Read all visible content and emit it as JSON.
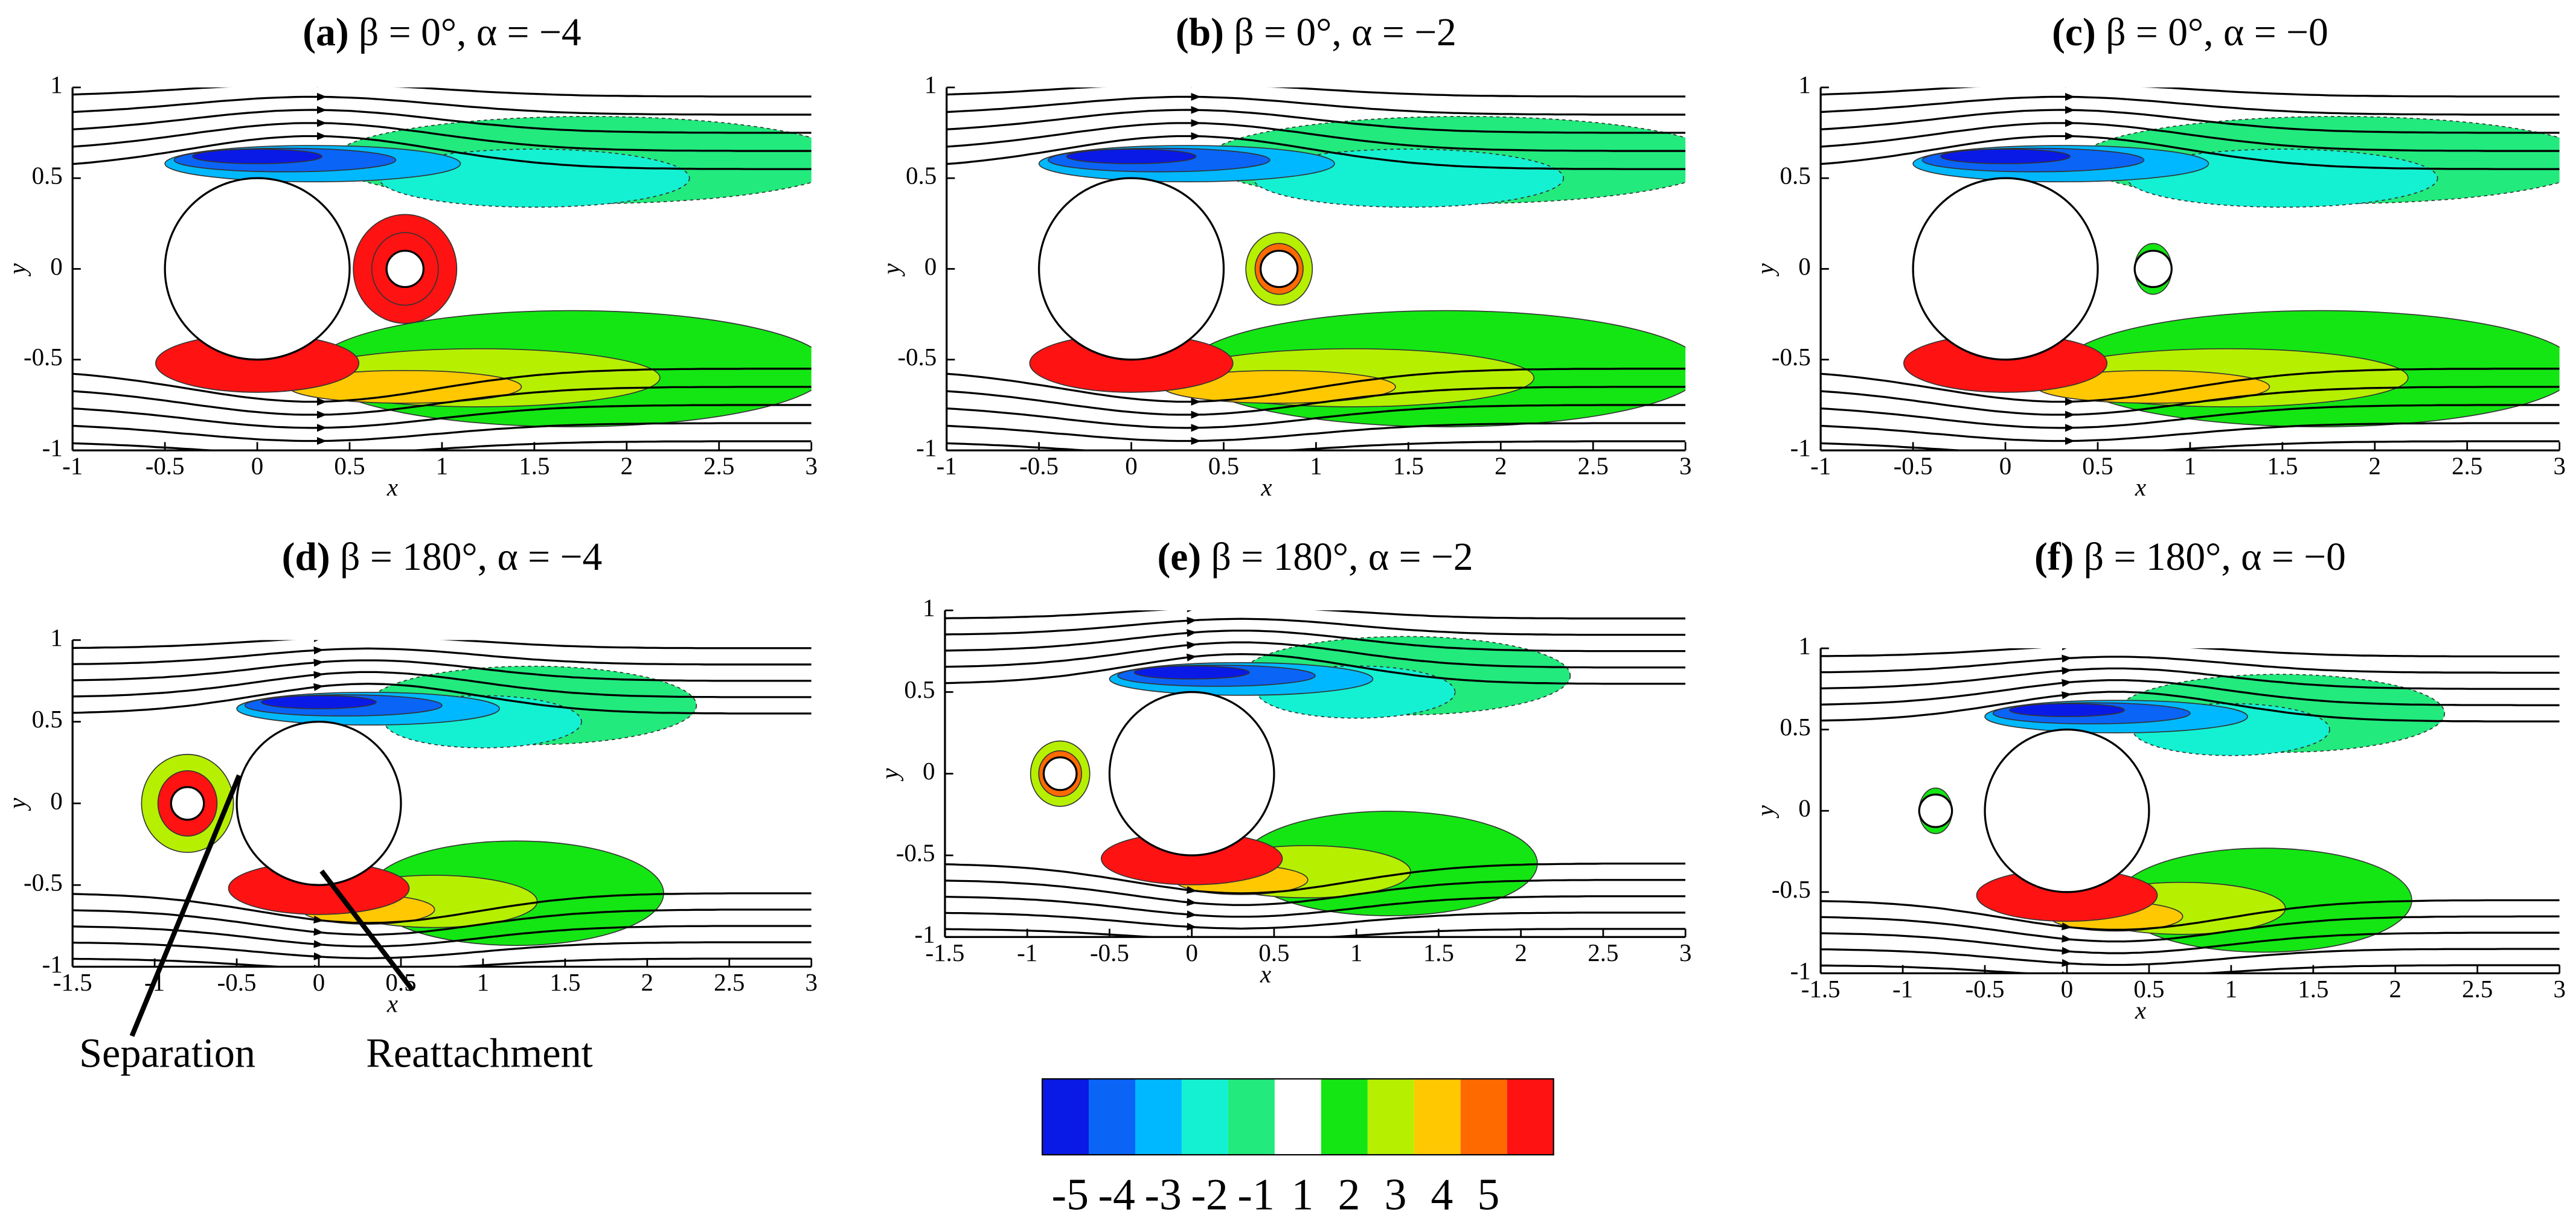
{
  "chart_data": [
    {
      "type": "contour",
      "label": "(a)",
      "title": "β = 0°, α = −4",
      "xlabel": "x",
      "ylabel": "y",
      "xlim": [
        -1,
        3
      ],
      "ylim": [
        -1,
        1
      ],
      "xticks": [
        -1,
        -0.5,
        0,
        0.5,
        1,
        1.5,
        2,
        2.5,
        3
      ],
      "yticks": [
        -1,
        -0.5,
        0,
        0.5,
        1
      ],
      "bodies": [
        {
          "x": 0,
          "y": 0,
          "r": 0.5
        },
        {
          "x": 0.8,
          "y": 0,
          "r": 0.1
        }
      ]
    },
    {
      "type": "contour",
      "label": "(b)",
      "title": "β = 0°, α = −2",
      "xlabel": "x",
      "ylabel": "y",
      "xlim": [
        -1,
        3
      ],
      "ylim": [
        -1,
        1
      ],
      "xticks": [
        -1,
        -0.5,
        0,
        0.5,
        1,
        1.5,
        2,
        2.5,
        3
      ],
      "yticks": [
        -1,
        -0.5,
        0,
        0.5,
        1
      ],
      "bodies": [
        {
          "x": 0,
          "y": 0,
          "r": 0.5
        },
        {
          "x": 0.8,
          "y": 0,
          "r": 0.1
        }
      ]
    },
    {
      "type": "contour",
      "label": "(c)",
      "title": "β = 0°, α = −0",
      "xlabel": "x",
      "ylabel": "y",
      "xlim": [
        -1,
        3
      ],
      "ylim": [
        -1,
        1
      ],
      "xticks": [
        -1,
        -0.5,
        0,
        0.5,
        1,
        1.5,
        2,
        2.5,
        3
      ],
      "yticks": [
        -1,
        -0.5,
        0,
        0.5,
        1
      ],
      "bodies": [
        {
          "x": 0,
          "y": 0,
          "r": 0.5
        },
        {
          "x": 0.8,
          "y": 0,
          "r": 0.1
        }
      ]
    },
    {
      "type": "contour",
      "label": "(d)",
      "title": "β = 180°, α = −4",
      "xlabel": "x",
      "ylabel": "y",
      "xlim": [
        -1.5,
        3
      ],
      "ylim": [
        -1,
        1
      ],
      "xticks": [
        -1.5,
        -1,
        -0.5,
        0,
        0.5,
        1,
        1.5,
        2,
        2.5,
        3
      ],
      "yticks": [
        -1,
        -0.5,
        0,
        0.5,
        1
      ],
      "bodies": [
        {
          "x": 0,
          "y": 0,
          "r": 0.5
        },
        {
          "x": -0.8,
          "y": 0,
          "r": 0.1
        }
      ],
      "annotations": [
        "Separation",
        "Reattachment"
      ]
    },
    {
      "type": "contour",
      "label": "(e)",
      "title": "β = 180°, α = −2",
      "xlabel": "x",
      "ylabel": "y",
      "xlim": [
        -1.5,
        3
      ],
      "ylim": [
        -1,
        1
      ],
      "xticks": [
        -1.5,
        -1,
        -0.5,
        0,
        0.5,
        1,
        1.5,
        2,
        2.5,
        3
      ],
      "yticks": [
        -1,
        -0.5,
        0,
        0.5,
        1
      ],
      "bodies": [
        {
          "x": 0,
          "y": 0,
          "r": 0.5
        },
        {
          "x": -0.8,
          "y": 0,
          "r": 0.1
        }
      ]
    },
    {
      "type": "contour",
      "label": "(f)",
      "title": "β = 180°, α = −0",
      "xlabel": "x",
      "ylabel": "y",
      "xlim": [
        -1.5,
        3
      ],
      "ylim": [
        -1,
        1
      ],
      "xticks": [
        -1.5,
        -1,
        -0.5,
        0,
        0.5,
        1,
        1.5,
        2,
        2.5,
        3
      ],
      "yticks": [
        -1,
        -0.5,
        0,
        0.5,
        1
      ],
      "bodies": [
        {
          "x": 0,
          "y": 0,
          "r": 0.5
        },
        {
          "x": -0.8,
          "y": 0,
          "r": 0.1
        }
      ]
    }
  ],
  "colorbar": {
    "levels": [
      -5,
      -4,
      -3,
      -2,
      -1,
      1,
      2,
      3,
      4,
      5
    ],
    "colors": [
      "#0a1ae6",
      "#0a64f5",
      "#00b8ff",
      "#14f0d2",
      "#22ea7c",
      "#ffffff",
      "#14e614",
      "#b6f000",
      "#ffc800",
      "#ff6a00",
      "#ff1212"
    ]
  }
}
